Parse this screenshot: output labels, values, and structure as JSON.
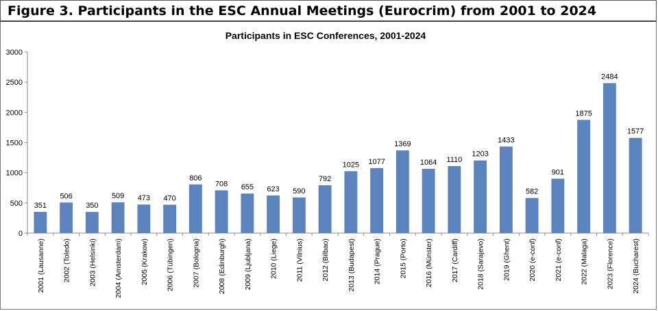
{
  "figure_title": "Figure 3. Participants in the ESC Annual Meetings (Eurocrim) from 2001 to 2024",
  "colors": {
    "bar": "#5b83bd",
    "axis": "#888888",
    "text": "#000000"
  },
  "chart_data": {
    "type": "bar",
    "title": "Participants in ESC Conferences, 2001-2024",
    "xlabel": "",
    "ylabel": "",
    "ylim": [
      0,
      3000
    ],
    "yticks": [
      0,
      500,
      1000,
      1500,
      2000,
      2500,
      3000
    ],
    "grid": false,
    "legend": "none",
    "categories": [
      "2001 (Lausanne)",
      "2002 (Toledo)",
      "2003 (Helsinki)",
      "2004 (Amsterdam)",
      "2005 (Krakow)",
      "2006 (Tübingen)",
      "2007 (Bologna)",
      "2008 (Edinburgh)",
      "2009 (Ljubljana)",
      "2010 (Liege)",
      "2011 (Vilnius)",
      "2012 (Bilbao)",
      "2013 (Budapest)",
      "2014 (Prague)",
      "2015 (Porto)",
      "2016 (Münster)",
      "2017 (Cardiff)",
      "2018 (Sarajevo)",
      "2019 (Ghent)",
      "2020 (e-conf)",
      "2021 (e-conf)",
      "2022 (Malaga)",
      "2023 (Florence)",
      "2024 (Bucharest)"
    ],
    "values": [
      351,
      506,
      350,
      509,
      473,
      470,
      806,
      708,
      655,
      623,
      590,
      792,
      1025,
      1077,
      1369,
      1064,
      1110,
      1203,
      1433,
      582,
      901,
      1875,
      2484,
      1577
    ]
  }
}
